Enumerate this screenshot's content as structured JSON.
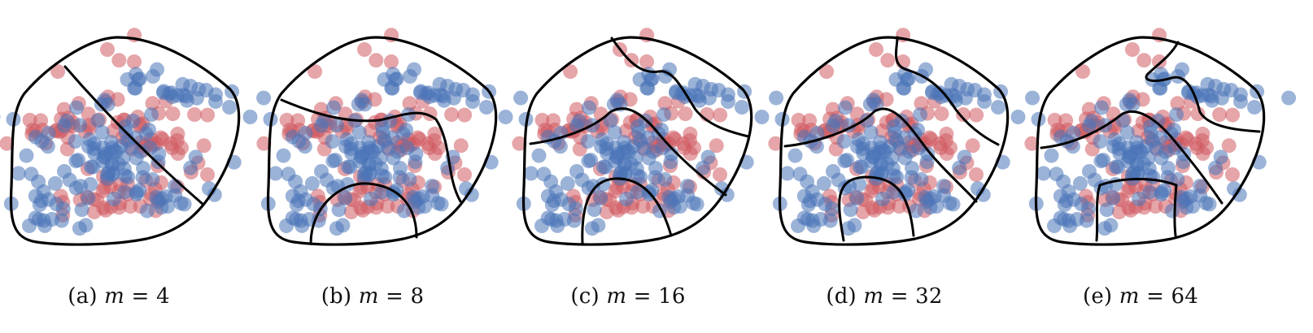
{
  "colors": {
    "red": "#cf5b63",
    "blue": "#4b74b8",
    "outline": "#000000"
  },
  "panels": [
    {
      "id": "a",
      "prefix": "(a)",
      "variable": "m",
      "equals": "=",
      "value": "4"
    },
    {
      "id": "b",
      "prefix": "(b)",
      "variable": "m",
      "equals": "=",
      "value": "8"
    },
    {
      "id": "c",
      "prefix": "(c)",
      "variable": "m",
      "equals": "=",
      "value": "16"
    },
    {
      "id": "d",
      "prefix": "(d)",
      "variable": "m",
      "equals": "=",
      "value": "32"
    },
    {
      "id": "e",
      "prefix": "(e)",
      "variable": "m",
      "equals": "=",
      "value": "64"
    }
  ]
}
